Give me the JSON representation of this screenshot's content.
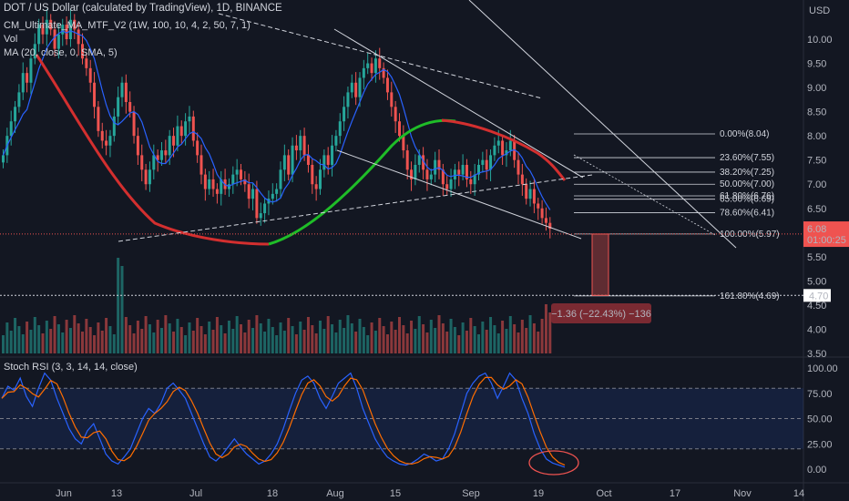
{
  "header": {
    "title": "DOT / US Dollar (calculated by TradingView), 1D, BINANCE",
    "indicator1": "CM_Ultimate_MA_MTF_V2 (1W, 100, 10, 4, 2, 50, 7, 1)",
    "indicator2": "Vol",
    "indicator3": "MA (20, close, 0, SMA, 5)",
    "stoch_label": "Stoch RSI (3, 3, 14, 14, close)"
  },
  "price_axis": {
    "currency": "USD",
    "ticks": [
      "10.00",
      "9.50",
      "9.00",
      "8.50",
      "8.00",
      "7.50",
      "7.00",
      "6.50",
      "6.00",
      "5.50",
      "5.00",
      "4.50",
      "4.00",
      "3.50"
    ],
    "current_price": "6.08",
    "countdown": "01:00:25",
    "target_price": "4.70"
  },
  "stoch_axis": {
    "ticks": [
      "100.00",
      "75.00",
      "50.00",
      "25.00",
      "0.00"
    ]
  },
  "time_axis": {
    "labels": [
      "Jun",
      "13",
      "Jul",
      "18",
      "Aug",
      "15",
      "Sep",
      "19",
      "Oct",
      "17",
      "Nov",
      "14"
    ]
  },
  "fib_levels": [
    {
      "label": "0.00%(8.04)",
      "price": 8.04
    },
    {
      "label": "23.60%(7.55)",
      "price": 7.55
    },
    {
      "label": "38.20%(7.25)",
      "price": 7.25
    },
    {
      "label": "50.00%(7.00)",
      "price": 7.0
    },
    {
      "label": "61.80%(6.76)",
      "price": 6.76
    },
    {
      "label": "65.00%(6.69)",
      "price": 6.69
    },
    {
      "label": "78.60%(6.41)",
      "price": 6.41
    },
    {
      "label": "100.00%(5.97)",
      "price": 5.97
    },
    {
      "label": "161.80%(4.69)",
      "price": 4.69
    }
  ],
  "measure": {
    "label": "−1.36 (−22.43%) −136"
  },
  "colors": {
    "bg": "#131722",
    "up": "#26a69a",
    "down": "#ef5350",
    "ma_blue": "#2962ff",
    "stoch_k": "#2962ff",
    "stoch_d": "#ff6d00",
    "ma_red": "#d32f2f",
    "ma_green": "#1fbd28"
  },
  "chart_data": {
    "type": "candlestick",
    "title": "DOT / US Dollar (calculated by TradingView), 1D, BINANCE",
    "ylim": [
      3.4,
      10.7
    ],
    "close": [
      7.6,
      8.0,
      8.3,
      8.6,
      8.9,
      9.3,
      9.1,
      9.6,
      9.9,
      10.3,
      10.1,
      10.4,
      10.2,
      9.8,
      10.1,
      10.3,
      10.0,
      10.4,
      10.2,
      9.9,
      9.6,
      9.4,
      9.1,
      8.6,
      8.1,
      7.9,
      7.8,
      8.0,
      8.4,
      8.8,
      9.1,
      8.7,
      8.5,
      8.0,
      7.6,
      7.3,
      7.0,
      7.3,
      7.6,
      7.5,
      7.7,
      7.6,
      8.0,
      7.8,
      8.2,
      8.0,
      8.3,
      8.4,
      7.9,
      7.6,
      7.2,
      6.9,
      7.1,
      6.9,
      6.8,
      7.1,
      6.9,
      7.0,
      7.2,
      7.3,
      7.1,
      7.0,
      6.7,
      6.9,
      6.3,
      6.4,
      6.6,
      6.7,
      6.8,
      6.9,
      7.3,
      7.6,
      7.2,
      7.8,
      7.7,
      8.0,
      7.6,
      7.4,
      7.0,
      6.9,
      7.3,
      7.6,
      7.4,
      7.8,
      8.0,
      8.3,
      8.6,
      8.9,
      9.1,
      8.8,
      9.2,
      9.4,
      9.5,
      9.3,
      9.6,
      9.4,
      9.2,
      8.9,
      8.6,
      8.3,
      8.0,
      7.7,
      7.3,
      7.1,
      7.4,
      7.6,
      7.3,
      7.1,
      7.2,
      7.5,
      7.3,
      7.0,
      6.9,
      7.1,
      7.3,
      7.2,
      7.4,
      7.1,
      7.0,
      7.2,
      7.4,
      7.5,
      7.3,
      7.6,
      7.8,
      7.9,
      7.6,
      7.7,
      7.9,
      7.5,
      7.2,
      7.0,
      6.7,
      6.9,
      6.6,
      6.5,
      6.3,
      6.2,
      6.08
    ],
    "stoch_k_note": "Stoch RSI %K and %D oscillate 0-100; final values near 0",
    "fib_retracement": [
      8.04,
      7.55,
      7.25,
      7.0,
      6.76,
      6.69,
      6.41,
      5.97,
      4.69
    ],
    "measured_move": {
      "change": -1.36,
      "percent": -22.43,
      "ticks": -136
    }
  }
}
